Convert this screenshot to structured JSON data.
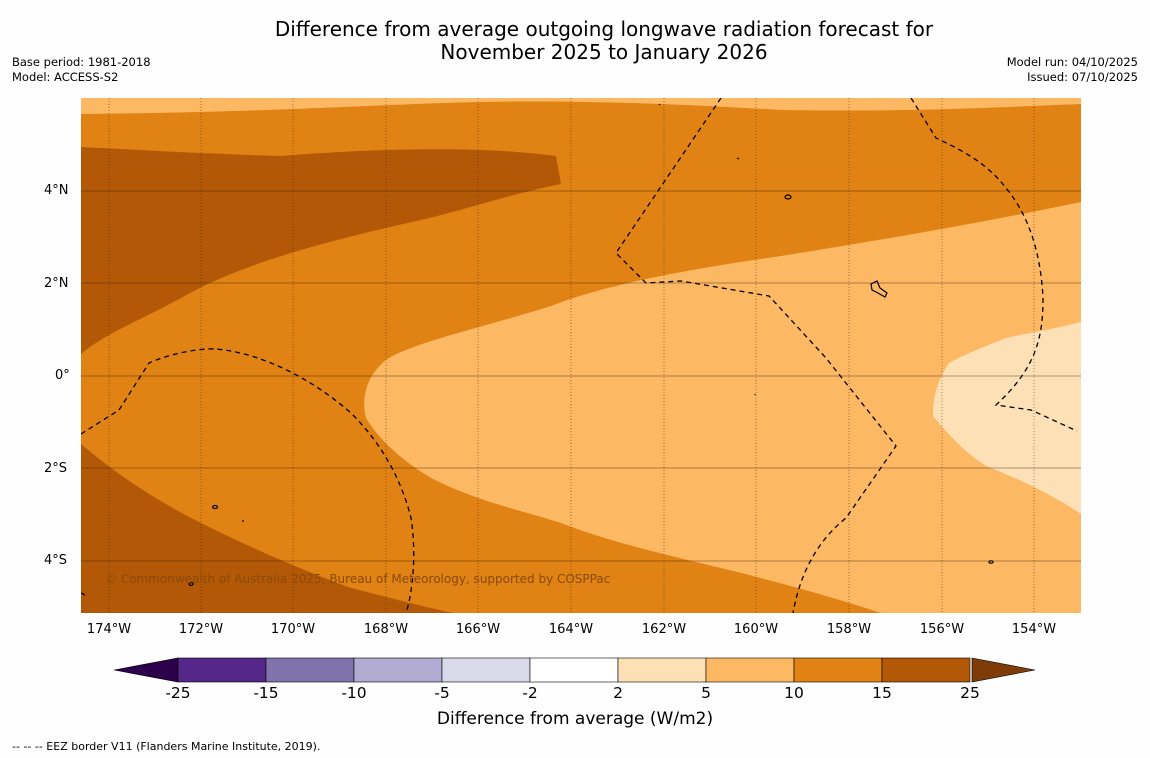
{
  "title": {
    "line1": "Difference from average outgoing longwave radiation forecast for",
    "line2": "November 2025 to January 2026"
  },
  "meta": {
    "base_period": "Base period: 1981-2018",
    "model": "Model: ACCESS-S2",
    "model_run": "Model run: 04/10/2025",
    "issued": "Issued: 07/10/2025"
  },
  "map": {
    "copyright": "© Commonwealth of Australia 2025, Bureau of Meteorology, supported by COSPPac",
    "lat_labels": [
      "4°N",
      "2°N",
      "0°",
      "2°S",
      "4°S"
    ],
    "lon_labels": [
      "174°W",
      "172°W",
      "170°W",
      "168°W",
      "166°W",
      "164°W",
      "162°W",
      "160°W",
      "158°W",
      "156°W",
      "154°W"
    ],
    "region_colors": {
      "c15_25": "#b35806",
      "c10_15": "#e08214",
      "c5_10": "#fdb863",
      "c2_5": "#fee0b6"
    }
  },
  "colorbar": {
    "ticks": [
      "-25",
      "-15",
      "-10",
      "-5",
      "-2",
      "2",
      "5",
      "10",
      "15",
      "25"
    ],
    "colors": [
      "#542788",
      "#8073ac",
      "#b2abd2",
      "#d8daeb",
      "#ffffff",
      "#fee0b6",
      "#fdb863",
      "#e08214",
      "#b35806"
    ],
    "under_color": "#2d004b",
    "over_color": "#7f3b08",
    "label": "Difference from average (W/m2)"
  },
  "footnote": "--  --  -- EEZ border V11 (Flanders Marine Institute, 2019)."
}
